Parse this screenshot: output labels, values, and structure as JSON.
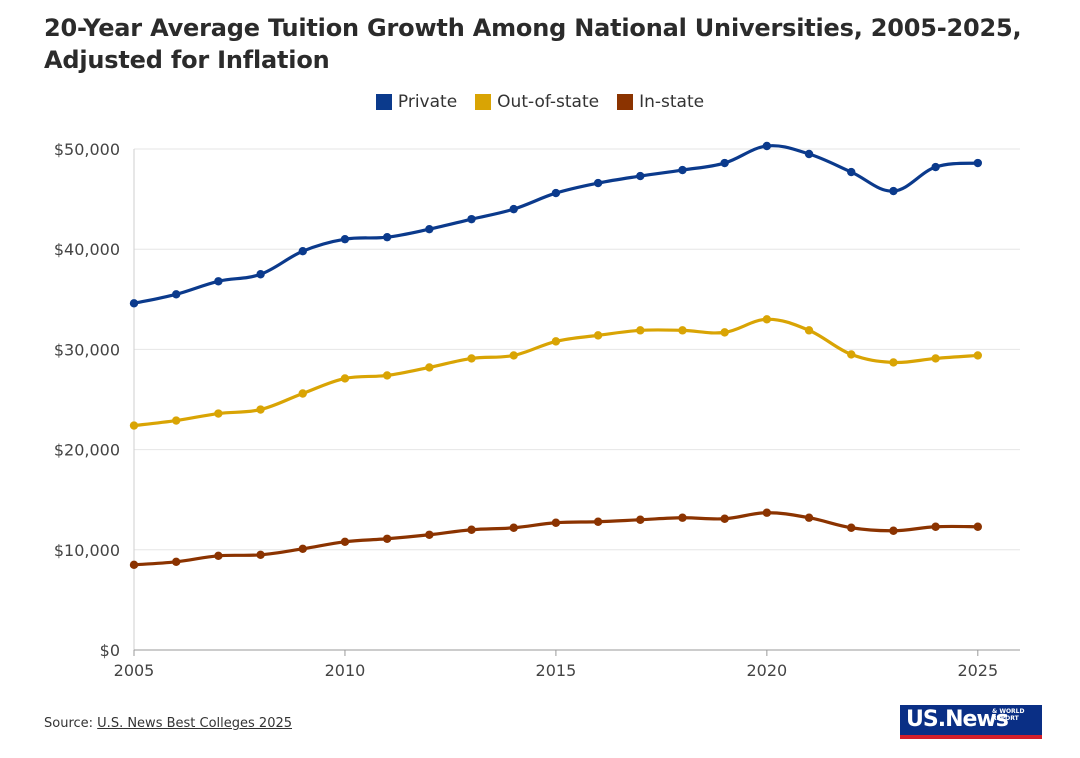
{
  "title": "20-Year Average Tuition Growth Among National Universities, 2005-2025, Adjusted for Inflation",
  "footer": {
    "source_prefix": "Source: ",
    "source_link": "U.S. News Best Colleges 2025"
  },
  "logo": {
    "main": "US.News",
    "sub": "& WORLD REPORT"
  },
  "chart_data": {
    "type": "line",
    "title": "20-Year Average Tuition Growth Among National Universities, 2005-2025, Adjusted for Inflation",
    "xlabel": "",
    "ylabel": "",
    "x": [
      2005,
      2006,
      2007,
      2008,
      2009,
      2010,
      2011,
      2012,
      2013,
      2014,
      2015,
      2016,
      2017,
      2018,
      2019,
      2020,
      2021,
      2022,
      2023,
      2024,
      2025
    ],
    "xlim": [
      2005,
      2026
    ],
    "ylim": [
      0,
      50000
    ],
    "x_ticks": [
      2005,
      2010,
      2015,
      2020,
      2025
    ],
    "x_tick_labels": [
      "2005",
      "2010",
      "2015",
      "2020",
      "2025"
    ],
    "y_ticks": [
      0,
      10000,
      20000,
      30000,
      40000,
      50000
    ],
    "y_tick_labels": [
      "$0",
      "$10,000",
      "$20,000",
      "$30,000",
      "$40,000",
      "$50,000"
    ],
    "grid": true,
    "legend_position": "top-center",
    "series": [
      {
        "name": "Private",
        "color": "#0b3a8c",
        "values": [
          34600,
          35500,
          36800,
          37500,
          39800,
          41000,
          41200,
          42000,
          43000,
          44000,
          45600,
          46600,
          47300,
          47900,
          48600,
          50300,
          49500,
          47700,
          45800,
          48200,
          48600
        ]
      },
      {
        "name": "Out-of-state",
        "color": "#d9a404",
        "values": [
          22400,
          22900,
          23600,
          24000,
          25600,
          27100,
          27400,
          28200,
          29100,
          29400,
          30800,
          31400,
          31900,
          31900,
          31700,
          33000,
          31900,
          29500,
          28700,
          29100,
          29400
        ]
      },
      {
        "name": "In-state",
        "color": "#8b3300",
        "values": [
          8500,
          8800,
          9400,
          9500,
          10100,
          10800,
          11100,
          11500,
          12000,
          12200,
          12700,
          12800,
          13000,
          13200,
          13100,
          13700,
          13200,
          12200,
          11900,
          12300,
          12300
        ]
      }
    ]
  }
}
